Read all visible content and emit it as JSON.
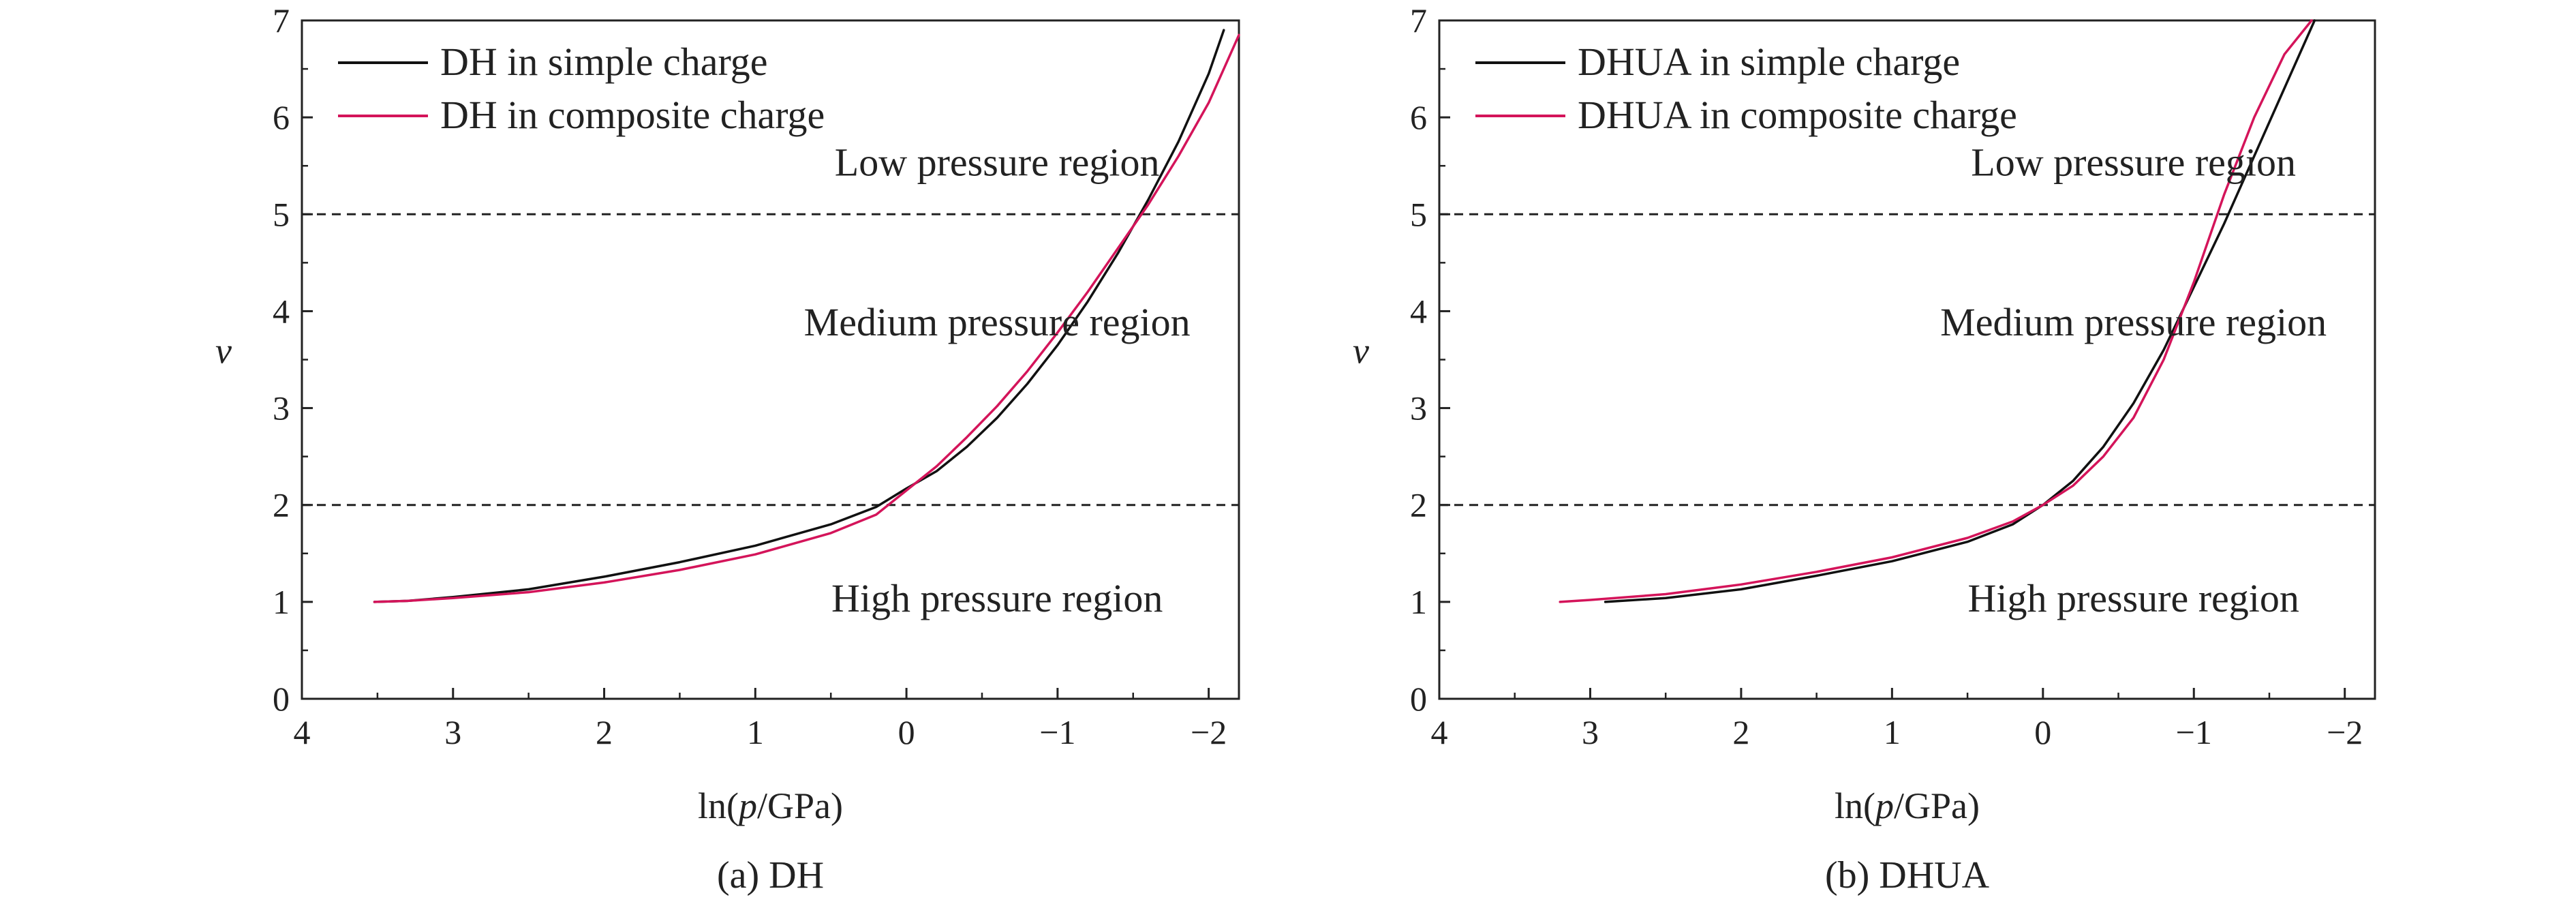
{
  "colors": {
    "simple": "#111111",
    "composite": "#d4145a",
    "axis": "#222222"
  },
  "chart_data": [
    {
      "type": "line",
      "caption": "(a) DH",
      "xlabel": "ln(p/GPa)",
      "xlabel_parts": {
        "prefix": "ln(",
        "var": "p",
        "suffix": "/GPa)"
      },
      "ylabel": "v",
      "xlim": [
        4,
        -2.2
      ],
      "ylim": [
        0,
        7
      ],
      "x_axis_reversed": true,
      "xticks": [
        4,
        3,
        2,
        1,
        0,
        -1,
        -2
      ],
      "xtick_labels": [
        "4",
        "3",
        "2",
        "1",
        "0",
        "−1",
        "−2"
      ],
      "yticks": [
        0,
        1,
        2,
        3,
        4,
        5,
        6,
        7
      ],
      "ytick_labels": [
        "0",
        "1",
        "2",
        "3",
        "4",
        "5",
        "6",
        "7"
      ],
      "grid": false,
      "legend_position": "top-left",
      "reference_lines": [
        5,
        2
      ],
      "regions": [
        {
          "label": "Low pressure region",
          "x": -0.6,
          "y": 5.4
        },
        {
          "label": "Medium pressure region",
          "x": -0.6,
          "y": 3.75
        },
        {
          "label": "High pressure region",
          "x": -0.6,
          "y": 0.9
        }
      ],
      "series": [
        {
          "name": "DH in simple charge",
          "color": "#111111",
          "x": [
            3.52,
            3.3,
            3.0,
            2.5,
            2.0,
            1.5,
            1.0,
            0.5,
            0.2,
            0.0,
            -0.2,
            -0.4,
            -0.6,
            -0.8,
            -1.0,
            -1.2,
            -1.4,
            -1.6,
            -1.8,
            -2.0,
            -2.1
          ],
          "y": [
            1.0,
            1.01,
            1.05,
            1.13,
            1.26,
            1.41,
            1.58,
            1.8,
            1.98,
            2.17,
            2.35,
            2.6,
            2.9,
            3.25,
            3.65,
            4.1,
            4.6,
            5.15,
            5.75,
            6.45,
            6.9
          ]
        },
        {
          "name": "DH in composite charge",
          "color": "#d4145a",
          "x": [
            3.52,
            3.3,
            3.0,
            2.5,
            2.0,
            1.5,
            1.0,
            0.5,
            0.2,
            0.0,
            -0.2,
            -0.4,
            -0.6,
            -0.8,
            -1.0,
            -1.2,
            -1.4,
            -1.6,
            -1.8,
            -2.0,
            -2.2
          ],
          "y": [
            1.0,
            1.01,
            1.04,
            1.1,
            1.2,
            1.33,
            1.49,
            1.71,
            1.9,
            2.15,
            2.4,
            2.7,
            3.02,
            3.38,
            3.78,
            4.2,
            4.65,
            5.1,
            5.6,
            6.15,
            6.85
          ]
        }
      ]
    },
    {
      "type": "line",
      "caption": "(b) DHUA",
      "xlabel": "ln(p/GPa)",
      "xlabel_parts": {
        "prefix": "ln(",
        "var": "p",
        "suffix": "/GPa)"
      },
      "ylabel": "v",
      "xlim": [
        4,
        -2.2
      ],
      "ylim": [
        0,
        7
      ],
      "x_axis_reversed": true,
      "xticks": [
        4,
        3,
        2,
        1,
        0,
        -1,
        -2
      ],
      "xtick_labels": [
        "4",
        "3",
        "2",
        "1",
        "0",
        "−1",
        "−2"
      ],
      "yticks": [
        0,
        1,
        2,
        3,
        4,
        5,
        6,
        7
      ],
      "ytick_labels": [
        "0",
        "1",
        "2",
        "3",
        "4",
        "5",
        "6",
        "7"
      ],
      "grid": false,
      "legend_position": "top-left",
      "reference_lines": [
        5,
        2
      ],
      "regions": [
        {
          "label": "Low pressure region",
          "x": -0.6,
          "y": 5.4
        },
        {
          "label": "Medium pressure region",
          "x": -0.6,
          "y": 3.75
        },
        {
          "label": "High pressure region",
          "x": -0.6,
          "y": 0.9
        }
      ],
      "series": [
        {
          "name": "DHUA in simple charge",
          "color": "#111111",
          "x": [
            2.9,
            2.5,
            2.0,
            1.5,
            1.0,
            0.5,
            0.2,
            0.0,
            -0.2,
            -0.4,
            -0.6,
            -0.8,
            -1.0,
            -1.2,
            -1.4,
            -1.6,
            -1.8
          ],
          "y": [
            1.0,
            1.04,
            1.13,
            1.27,
            1.42,
            1.62,
            1.8,
            2.0,
            2.25,
            2.6,
            3.05,
            3.6,
            4.25,
            4.9,
            5.6,
            6.3,
            7.0
          ]
        },
        {
          "name": "DHUA in composite charge",
          "color": "#d4145a",
          "x": [
            3.2,
            3.0,
            2.5,
            2.0,
            1.5,
            1.0,
            0.5,
            0.2,
            0.0,
            -0.2,
            -0.4,
            -0.6,
            -0.8,
            -1.0,
            -1.2,
            -1.4,
            -1.6,
            -1.78
          ],
          "y": [
            1.0,
            1.02,
            1.08,
            1.18,
            1.31,
            1.46,
            1.66,
            1.83,
            2.0,
            2.2,
            2.5,
            2.9,
            3.5,
            4.3,
            5.2,
            6.0,
            6.65,
            7.0
          ]
        }
      ]
    }
  ]
}
